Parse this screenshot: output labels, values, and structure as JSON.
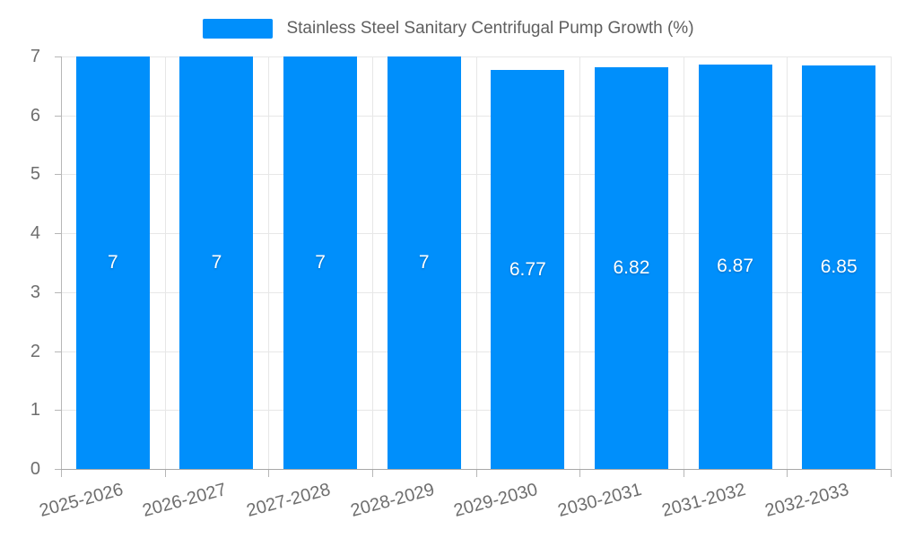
{
  "legend": {
    "position": "top",
    "marker_color": "#008FFB"
  },
  "chart_data": {
    "type": "bar",
    "title": "",
    "series_name": "Stainless Steel Sanitary Centrifugal Pump Growth (%)",
    "categories": [
      "2025-2026",
      "2026-2027",
      "2027-2028",
      "2028-2029",
      "2029-2030",
      "2030-2031",
      "2031-2032",
      "2032-2033"
    ],
    "values": [
      7,
      7,
      7,
      7,
      6.77,
      6.82,
      6.87,
      6.85
    ],
    "data_labels": [
      "7",
      "7",
      "7",
      "7",
      "6.77",
      "6.82",
      "6.87",
      "6.85"
    ],
    "xlabel": "",
    "ylabel": "",
    "ylim": [
      0,
      7
    ],
    "yticks": [
      0,
      1,
      2,
      3,
      4,
      5,
      6,
      7
    ],
    "grid": true,
    "legend_position": "top",
    "colors": {
      "bar": "#008FFB",
      "grid": "#e7e7e7",
      "y_axis_line": "#b6b6b6",
      "x_axis_line": "#a8a8a8",
      "tick_text": "#6e6e6e",
      "legend_text": "#5f5f5f",
      "data_label_text": "#ffffff"
    }
  }
}
